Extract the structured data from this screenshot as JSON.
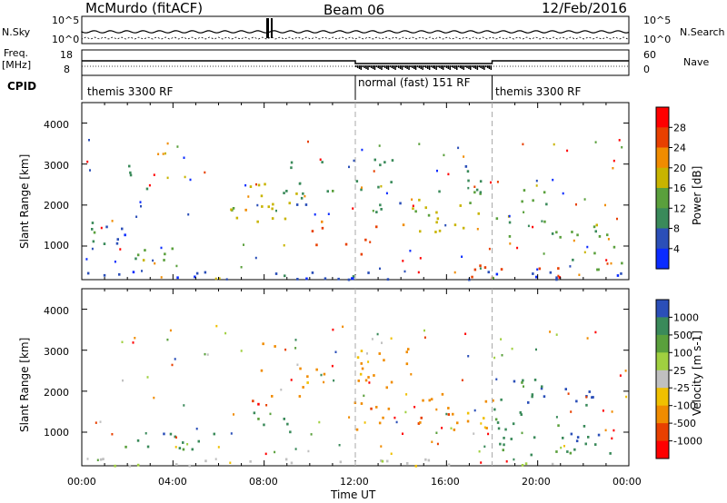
{
  "header": {
    "station": "McMurdo (fitACF)",
    "beam": "Beam 06",
    "date": "12/Feb/2016"
  },
  "noise_panel": {
    "left_label": "N.Sky",
    "right_label": "N.Search",
    "tick_top": "10^5",
    "tick_bottom": "10^0",
    "tick_top_right": "10^5",
    "tick_bottom_right": "10^0"
  },
  "freq_panel": {
    "left_label_1": "Freq.",
    "left_label_2": "[MHz]",
    "right_label": "Nave",
    "tick_top": "18",
    "tick_bottom": "8",
    "tick_top_right": "60",
    "tick_bottom_right": "0"
  },
  "cpid": {
    "label": "CPID",
    "modes": [
      {
        "name": "themis 3300 RF",
        "start_hour": 0
      },
      {
        "name": "normal (fast) 151 RF",
        "start_hour": 12
      },
      {
        "name": "themis 3300 RF",
        "start_hour": 18
      }
    ]
  },
  "chart_data": [
    {
      "type": "heatmap",
      "name": "power",
      "ylabel": "Slant Range [km]",
      "xlabel": "",
      "ylim": [
        180,
        4500
      ],
      "yticks": [
        "1000",
        "2000",
        "3000",
        "4000"
      ],
      "xlim": [
        0,
        24
      ],
      "colorbar_label": "Power [dB]",
      "colorbar_ticks": [
        "4",
        "8",
        "12",
        "16",
        "20",
        "24",
        "28"
      ],
      "colors": [
        "#0a2bff",
        "#2b4fb8",
        "#3a8a5a",
        "#5aa03c",
        "#c8b400",
        "#f08c00",
        "#e84000",
        "#ff0000"
      ],
      "regions": [
        {
          "t0": 0.3,
          "t1": 1.0,
          "r0": 1000,
          "r1": 2200,
          "c": 2
        },
        {
          "t0": 1.0,
          "t1": 2.2,
          "r0": 1000,
          "r1": 1500,
          "c": 1
        },
        {
          "t0": 1.5,
          "t1": 4.5,
          "r0": 600,
          "r1": 1000,
          "c": 3
        },
        {
          "t0": 2.0,
          "t1": 3.0,
          "r0": 2300,
          "r1": 3000,
          "c": 2
        },
        {
          "t0": 6.5,
          "t1": 9.5,
          "r0": 1600,
          "r1": 2600,
          "c": 4
        },
        {
          "t0": 8.5,
          "t1": 11.0,
          "r0": 2000,
          "r1": 3100,
          "c": 2
        },
        {
          "t0": 10.0,
          "t1": 10.9,
          "r0": 800,
          "r1": 1700,
          "c": 6
        },
        {
          "t0": 11.4,
          "t1": 13.5,
          "r0": 800,
          "r1": 1600,
          "c": 6
        },
        {
          "t0": 12.0,
          "t1": 14.0,
          "r0": 1800,
          "r1": 3200,
          "c": 2
        },
        {
          "t0": 14.0,
          "t1": 18.0,
          "r0": 1200,
          "r1": 2200,
          "c": 4
        },
        {
          "t0": 15.5,
          "t1": 17.5,
          "r0": 2200,
          "r1": 3000,
          "c": 2
        },
        {
          "t0": 18.0,
          "t1": 20.5,
          "r0": 1200,
          "r1": 2400,
          "c": 3
        },
        {
          "t0": 17.0,
          "t1": 21.5,
          "r0": 250,
          "r1": 600,
          "c": 6
        },
        {
          "t0": 20.5,
          "t1": 23.8,
          "r0": 400,
          "r1": 1600,
          "c": 3
        },
        {
          "t0": 0.0,
          "t1": 24.0,
          "r0": 200,
          "r1": 400,
          "c": 1
        }
      ]
    },
    {
      "type": "heatmap",
      "name": "velocity",
      "ylabel": "Slant Range [km]",
      "xlabel": "Time UT",
      "ylim": [
        180,
        4500
      ],
      "yticks": [
        "1000",
        "2000",
        "3000",
        "4000"
      ],
      "xlim": [
        0,
        24
      ],
      "xticks": [
        "00:00",
        "04:00",
        "08:00",
        "12:00",
        "16:00",
        "20:00",
        "00:00"
      ],
      "colorbar_label": "Velocity [m s-1]",
      "colorbar_ticks": [
        "1000",
        "500",
        "100",
        "25",
        "-25",
        "-100",
        "-500",
        "-1000"
      ],
      "colors": [
        "#2b4fb8",
        "#3a8a5a",
        "#5aa03c",
        "#a0d040",
        "#c0c0c0",
        "#f0c000",
        "#f08c00",
        "#e84000",
        "#ff0000"
      ],
      "regions": [
        {
          "t0": 1.0,
          "t1": 6.0,
          "r0": 600,
          "r1": 1000,
          "c": 1
        },
        {
          "t0": 7.0,
          "t1": 8.5,
          "r0": 1700,
          "r1": 2300,
          "c": 7
        },
        {
          "t0": 7.0,
          "t1": 9.5,
          "r0": 1000,
          "r1": 1500,
          "c": 1
        },
        {
          "t0": 7.5,
          "t1": 8.8,
          "r0": 2400,
          "r1": 3200,
          "c": 6
        },
        {
          "t0": 9.5,
          "t1": 10.8,
          "r0": 1800,
          "r1": 2600,
          "c": 6
        },
        {
          "t0": 11.2,
          "t1": 14.0,
          "r0": 1000,
          "r1": 1800,
          "c": 6
        },
        {
          "t0": 12.0,
          "t1": 14.5,
          "r0": 2000,
          "r1": 3200,
          "c": 6
        },
        {
          "t0": 14.5,
          "t1": 18.0,
          "r0": 1000,
          "r1": 2000,
          "c": 6
        },
        {
          "t0": 18.0,
          "t1": 20.0,
          "r0": 1200,
          "r1": 2400,
          "c": 1
        },
        {
          "t0": 18.0,
          "t1": 23.8,
          "r0": 400,
          "r1": 1200,
          "c": 1
        },
        {
          "t0": 20.0,
          "t1": 23.5,
          "r0": 1600,
          "r1": 2200,
          "c": 0
        },
        {
          "t0": 0.0,
          "t1": 24.0,
          "r0": 200,
          "r1": 380,
          "c": 4
        }
      ]
    }
  ]
}
